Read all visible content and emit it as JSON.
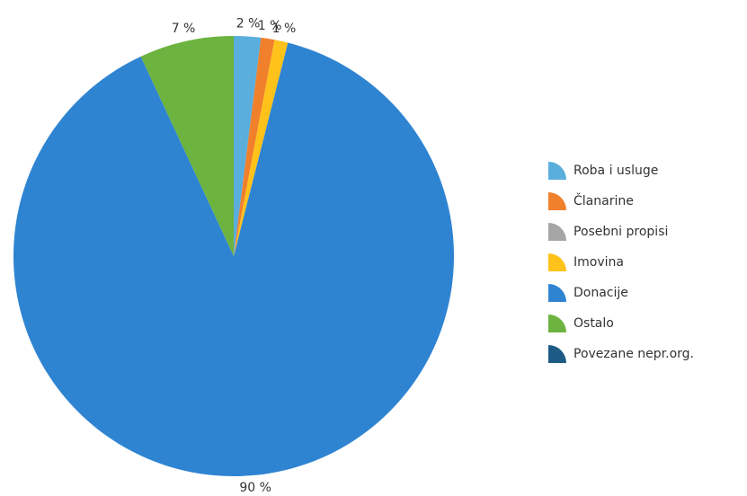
{
  "chart_data": {
    "type": "pie",
    "categories": [
      "Roba i usluge",
      "Članarine",
      "Posebni propisi",
      "Imovina",
      "Donacije",
      "Ostalo",
      "Povezane nepr.org."
    ],
    "values": [
      2,
      1,
      0,
      1,
      90,
      7,
      0
    ],
    "value_labels": [
      "2 %",
      "1 %",
      null,
      "1 %",
      "90 %",
      "7 %",
      null
    ],
    "colors": [
      "#5aaedc",
      "#f0802c",
      "#a6a6a6",
      "#ffc21a",
      "#2f84d2",
      "#6cb33f",
      "#1d5b86"
    ],
    "legend": "right"
  }
}
